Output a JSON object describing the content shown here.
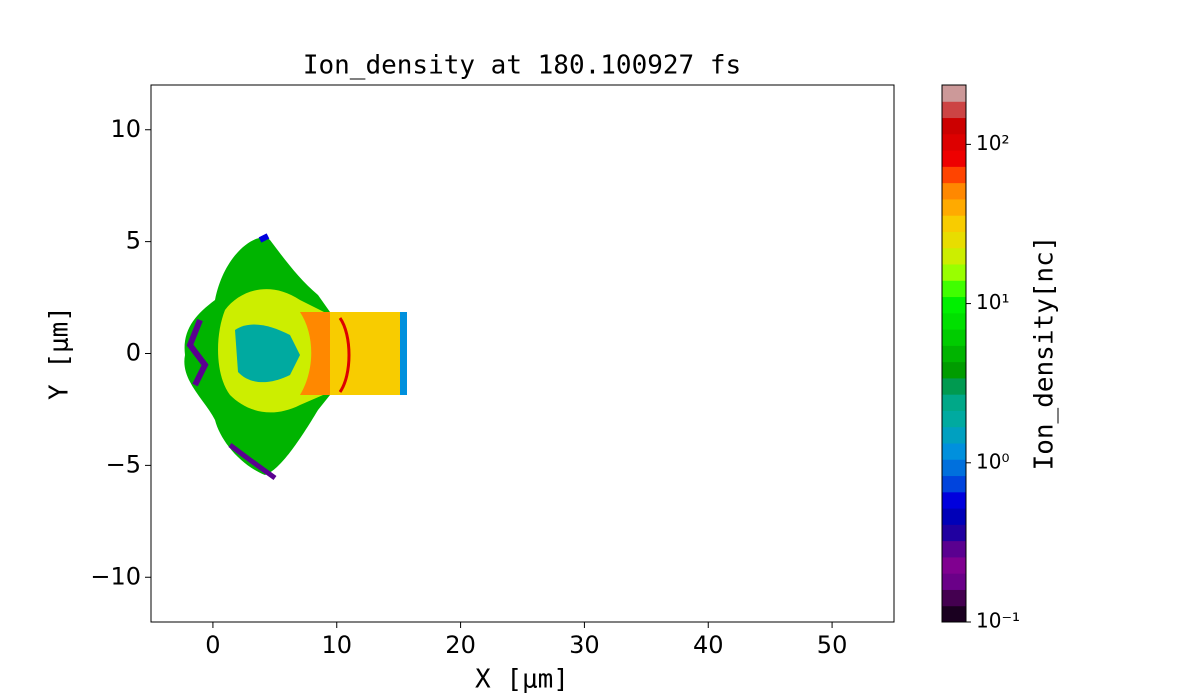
{
  "chart_data": {
    "type": "heatmap",
    "title": "Ion_density at 180.100927 fs",
    "x_label": "X [μm]",
    "y_label": "Y [μm]",
    "xlim": [
      -5,
      55
    ],
    "xticks": [
      0,
      10,
      20,
      30,
      40,
      50
    ],
    "ylim": [
      -12,
      12
    ],
    "yticks": [
      {
        "value": -10,
        "label": "−10"
      },
      {
        "value": -5,
        "label": "−5"
      },
      0,
      5,
      10
    ],
    "colorbar": {
      "label": "Ion_density[nc]",
      "log_scale": true,
      "lim": [
        0.1,
        236
      ],
      "ticks": [
        {
          "value": 0.1,
          "label": "10⁻¹"
        },
        {
          "value": 1,
          "label": "10⁰"
        },
        {
          "value": 10,
          "label": "10¹"
        },
        {
          "value": 100,
          "label": "10²"
        }
      ],
      "colors": [
        "#1a0020",
        "#440050",
        "#6a0088",
        "#800090",
        "#5a0090",
        "#2000a0",
        "#0000b8",
        "#0000dd",
        "#0044dd",
        "#0070dd",
        "#0090dd",
        "#00a0c0",
        "#00aaa0",
        "#00a888",
        "#009a50",
        "#009c00",
        "#00b400",
        "#00cc00",
        "#00e000",
        "#00f000",
        "#40ff00",
        "#99ff00",
        "#ccee00",
        "#e8dd00",
        "#f8cc00",
        "#ffaa00",
        "#ff8800",
        "#ff4400",
        "#ee0000",
        "#dd0000",
        "#cc0000",
        "#cc4444",
        "#cc9999"
      ]
    }
  }
}
